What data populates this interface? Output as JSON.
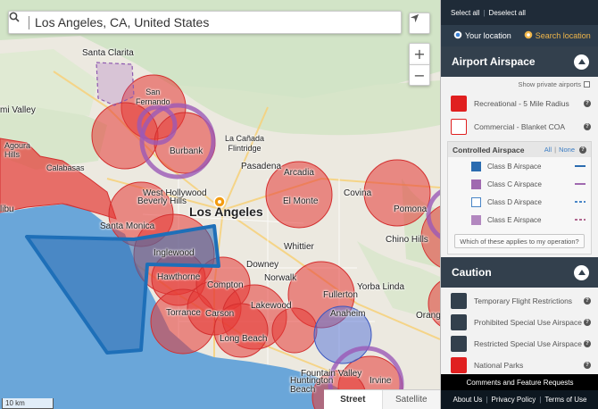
{
  "search": {
    "value": "Los Angeles, CA, United States"
  },
  "map": {
    "labels": {
      "santa_clarita": "Santa Clarita",
      "san_fernando": "San\nFernando",
      "simi_valley": "mi Valley",
      "agoura_hills": "Agoura\nHills",
      "calabasas": "Calabasas",
      "burbank": "Burbank",
      "la_canada": "La Cañada\nFlintridge",
      "pasadena": "Pasadena",
      "west_hollywood": "West Hollywood",
      "beverly_hills": "Beverly Hills",
      "los_angeles": "Los Angeles",
      "arcadia": "Arcadia",
      "el_monte": "El Monte",
      "covina": "Covina",
      "pomona": "Pomona",
      "chino_hills": "Chino Hills",
      "malibu": "libu",
      "santa_monica": "Santa Monica",
      "inglewood": "Inglewood",
      "whittier": "Whittier",
      "downey": "Downey",
      "hawthorne": "Hawthorne",
      "norwalk": "Norwalk",
      "compton": "Compton",
      "fullerton": "Fullerton",
      "yorba_linda": "Yorba Linda",
      "torrance": "Torrance",
      "carson": "Carson",
      "lakewood": "Lakewood",
      "anaheim": "Anaheim",
      "orange": "Orang",
      "long_beach": "Long Beach",
      "fountain_valley": "Fountain Valley",
      "huntington_beach": "Huntington\nBeach",
      "irvine": "Irvine"
    },
    "scale_label": "10 km",
    "view_street": "Street",
    "view_satellite": "Satellite",
    "zoom_in": "+",
    "zoom_out": "−"
  },
  "sidebar": {
    "select_all": "Select all",
    "deselect_all": "Deselect all",
    "your_location": "Your location",
    "search_location": "Search location",
    "airport": {
      "title": "Airport Airspace",
      "show_private": "Show private airports",
      "recreational": "Recreational - 5 Mile Radius",
      "commercial": "Commercial - Blanket COA",
      "controlled": {
        "title": "Controlled Airspace",
        "all": "All",
        "none": "None",
        "classes": [
          {
            "label": "Class B Airspace",
            "color": "#2b6cb0",
            "line": "solid"
          },
          {
            "label": "Class C Airspace",
            "color": "#a06ab0",
            "line": "solid"
          },
          {
            "label": "Class D Airspace",
            "color": "#4a86c7",
            "line": "dashed"
          },
          {
            "label": "Class E Airspace",
            "color": "#b06890",
            "line": "dashed"
          }
        ]
      },
      "which_applies": "Which of these applies to my operation?"
    },
    "caution": {
      "title": "Caution",
      "items": [
        {
          "label": "Temporary Flight Restrictions",
          "color": "#33404d"
        },
        {
          "label": "Prohibited Special Use Airspace",
          "color": "#33404d"
        },
        {
          "label": "Restricted Special Use Airspace",
          "color": "#33404d"
        },
        {
          "label": "National Parks",
          "color": "#e02020"
        }
      ]
    },
    "footer": {
      "comments": "Comments and Feature Requests",
      "about": "About Us",
      "privacy": "Privacy Policy",
      "terms": "Terms of Use"
    }
  },
  "colors": {
    "red_zone": "#e53935",
    "class_b": "#1e6fb8",
    "class_c": "#9b59b6",
    "water": "#6aa6d9"
  }
}
